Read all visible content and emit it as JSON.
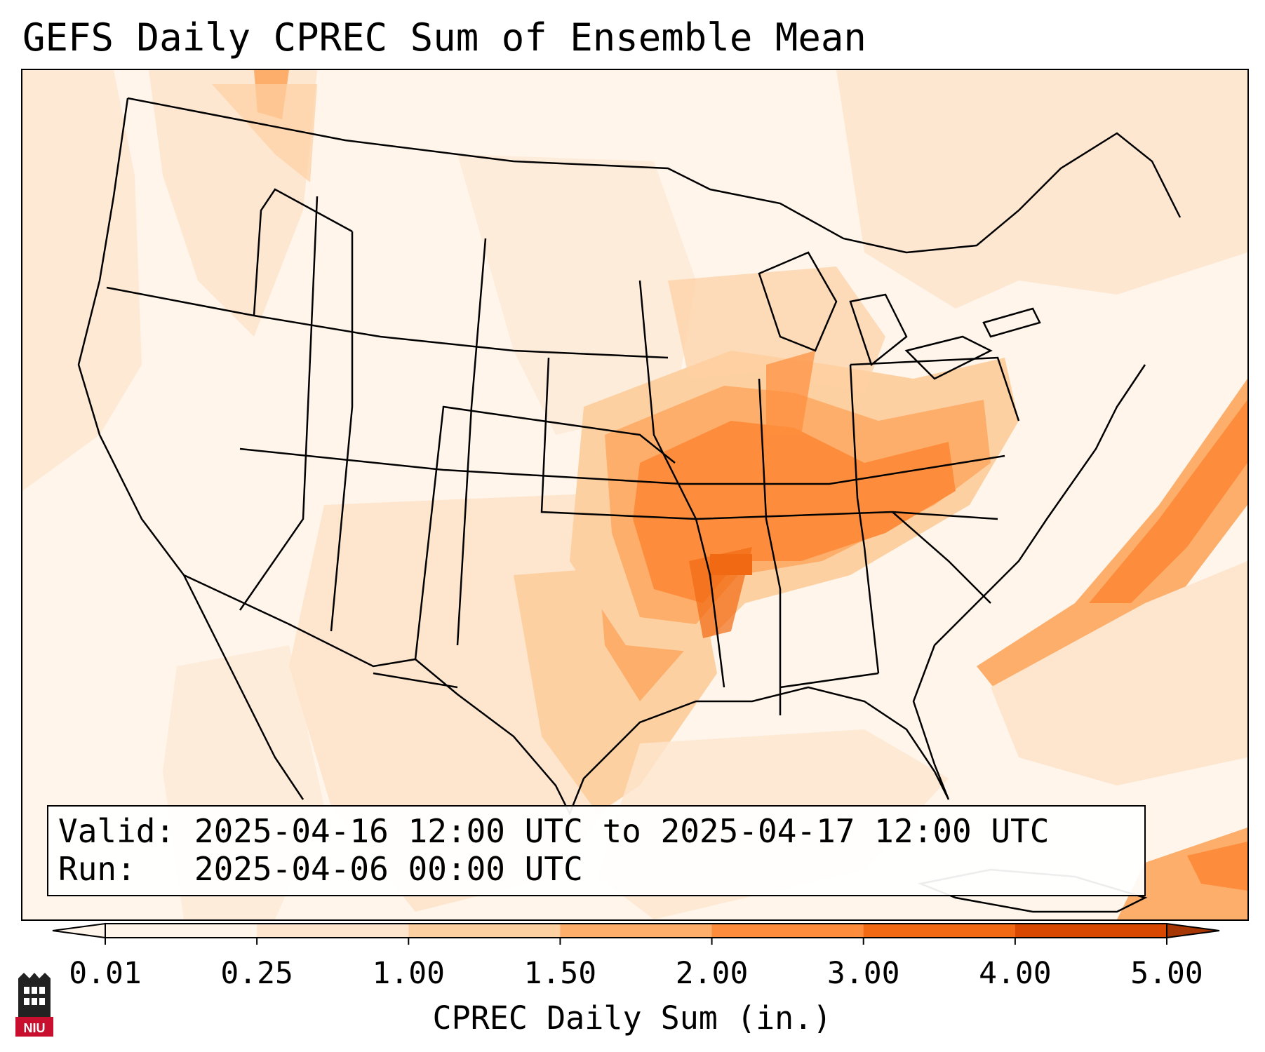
{
  "title": "GEFS Daily CPREC Sum of Ensemble Mean",
  "info": {
    "valid_label": "Valid:",
    "valid_value": "2025-04-16 12:00 UTC to 2025-04-17 12:00 UTC",
    "run_label": "Run:",
    "run_value": "2025-04-06 00:00 UTC"
  },
  "colorbar": {
    "label": "CPREC Daily Sum (in.)",
    "ticks": [
      "0.01",
      "0.25",
      "1.00",
      "1.50",
      "2.00",
      "3.00",
      "4.00",
      "5.00"
    ],
    "colors": [
      "#fff5eb",
      "#fee6ce",
      "#fdd0a2",
      "#fdae6b",
      "#fd8d3c",
      "#f16913",
      "#d94801"
    ],
    "under_color": "#fff5eb",
    "over_color": "#a63603"
  },
  "logo": {
    "text": "NIU",
    "icon": "niu-logo-icon",
    "color": "#c8102e"
  }
}
